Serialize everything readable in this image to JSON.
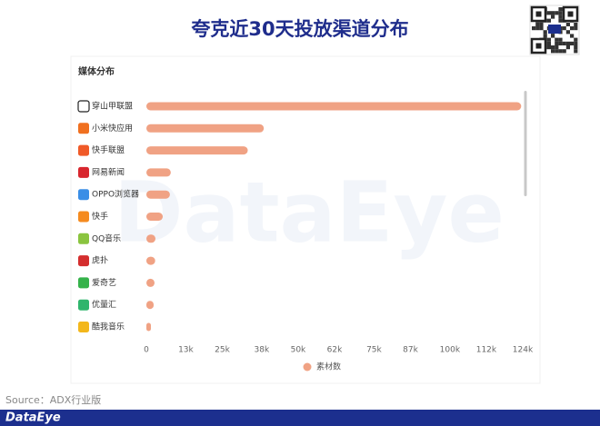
{
  "chart_data": {
    "type": "bar",
    "orientation": "horizontal",
    "title": "夸克近30天投放渠道分布",
    "subtitle": "媒体分布",
    "categories": [
      "穿山甲联盟",
      "小米快应用",
      "快手联盟",
      "网易新闻",
      "OPPO浏览器",
      "快手",
      "QQ音乐",
      "虎扑",
      "爱奇艺",
      "优量汇",
      "酷我音乐"
    ],
    "series": [
      {
        "name": "素材数",
        "color": "#f0a284",
        "values": [
          123500,
          38700,
          33400,
          8050,
          7750,
          5400,
          3000,
          2900,
          2700,
          2400,
          1500
        ]
      }
    ],
    "xlim": [
      0,
      124000
    ],
    "xticks": [
      0,
      {
        "value": 13000,
        "label": "13k"
      },
      {
        "value": 25000,
        "label": "25k"
      },
      {
        "value": 38000,
        "label": "38k"
      },
      {
        "value": 50000,
        "label": "50k"
      },
      {
        "value": 62000,
        "label": "62k"
      },
      {
        "value": 75000,
        "label": "75k"
      },
      {
        "value": 87000,
        "label": "87k"
      },
      {
        "value": 100000,
        "label": "100k"
      },
      {
        "value": 112000,
        "label": "112k"
      },
      {
        "value": 124000,
        "label": "124k"
      }
    ],
    "grid": false,
    "legend": "bottom",
    "source": "Source：ADX行业版",
    "watermark": "DataEye",
    "brand": "DataEye"
  }
}
